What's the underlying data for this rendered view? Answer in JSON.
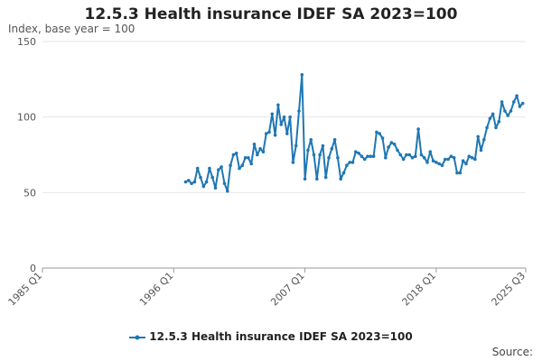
{
  "chart_data": {
    "type": "line",
    "title": "12.5.3 Health insurance IDEF SA 2023=100",
    "ylabel": "Index, base year = 100",
    "xlabel": "",
    "ylim": [
      0,
      150
    ],
    "yticks": [
      0,
      50,
      100,
      150
    ],
    "xticks": [
      {
        "label": "1985 Q1",
        "t": 1985.0
      },
      {
        "label": "1996 Q1",
        "t": 1996.0
      },
      {
        "label": "2007 Q1",
        "t": 2007.0
      },
      {
        "label": "2018 Q1",
        "t": 2018.0
      },
      {
        "label": "2025 Q3",
        "t": 2025.5
      }
    ],
    "x_start": 1985.0,
    "x_end": 2025.5,
    "grid": true,
    "legend_position": "bottom",
    "series": [
      {
        "name": "12.5.3 Health insurance IDEF SA 2023=100",
        "color": "#1f77b4",
        "start": 1997.0,
        "step": 0.25,
        "values": [
          57,
          58,
          56,
          57,
          66,
          60,
          54,
          57,
          66,
          60,
          53,
          65,
          67,
          56,
          51,
          68,
          75,
          76,
          66,
          68,
          73,
          73,
          69,
          82,
          75,
          79,
          77,
          89,
          90,
          102,
          88,
          108,
          95,
          100,
          89,
          100,
          70,
          81,
          104,
          128,
          59,
          78,
          85,
          75,
          59,
          75,
          81,
          60,
          73,
          79,
          85,
          73,
          59,
          63,
          68,
          70,
          70,
          77,
          76,
          74,
          72,
          74,
          74,
          74,
          90,
          89,
          86,
          73,
          80,
          83,
          82,
          78,
          75,
          72,
          75,
          75,
          73,
          74,
          92,
          75,
          73,
          70,
          77,
          71,
          70,
          69,
          68,
          72,
          72,
          74,
          73,
          63,
          63,
          71,
          69,
          74,
          73,
          72,
          87,
          78,
          85,
          93,
          99,
          102,
          93,
          97,
          110,
          104,
          101,
          104,
          110,
          114,
          107,
          109
        ]
      }
    ]
  },
  "legend": {
    "label": "12.5.3 Health insurance IDEF SA 2023=100"
  },
  "source": {
    "label": "Source:"
  }
}
